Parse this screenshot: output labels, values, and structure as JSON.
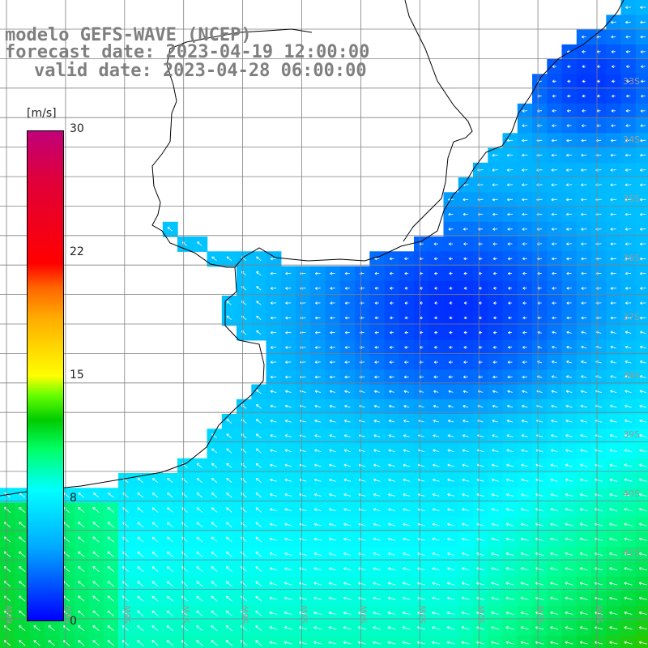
{
  "title": {
    "line1": "modelo GEFS-WAVE (NCEP)",
    "line2": "forecast date: 2023-04-19 12:00:00",
    "line3": "valid date: 2023-04-28 06:00:00"
  },
  "colorbar": {
    "units": "[m/s]",
    "ticks": [
      "30",
      "22",
      "15",
      "8",
      "0"
    ],
    "tick_values": [
      30,
      22,
      15,
      8,
      0
    ],
    "colors": {
      "low": "#0000ff",
      "mid_low": "#00ffff",
      "mid": "#00cc00",
      "mid_high": "#ffff00",
      "high": "#ff0000",
      "max": "#c0007a"
    }
  },
  "map": {
    "lat_labels": [
      "33S",
      "34S",
      "35S",
      "36S",
      "37S",
      "38S",
      "39S",
      "40S",
      "41S"
    ],
    "lon_labels": [
      "60W",
      "59W",
      "58W",
      "57W",
      "56W",
      "55W",
      "54W",
      "53W",
      "52W",
      "51W",
      "50W"
    ],
    "field": "wind speed and direction",
    "land_color": "#ffffff",
    "grid_color": "#7f7f7f",
    "coast_color": "#000000",
    "arrow_color": "#ffffff"
  }
}
